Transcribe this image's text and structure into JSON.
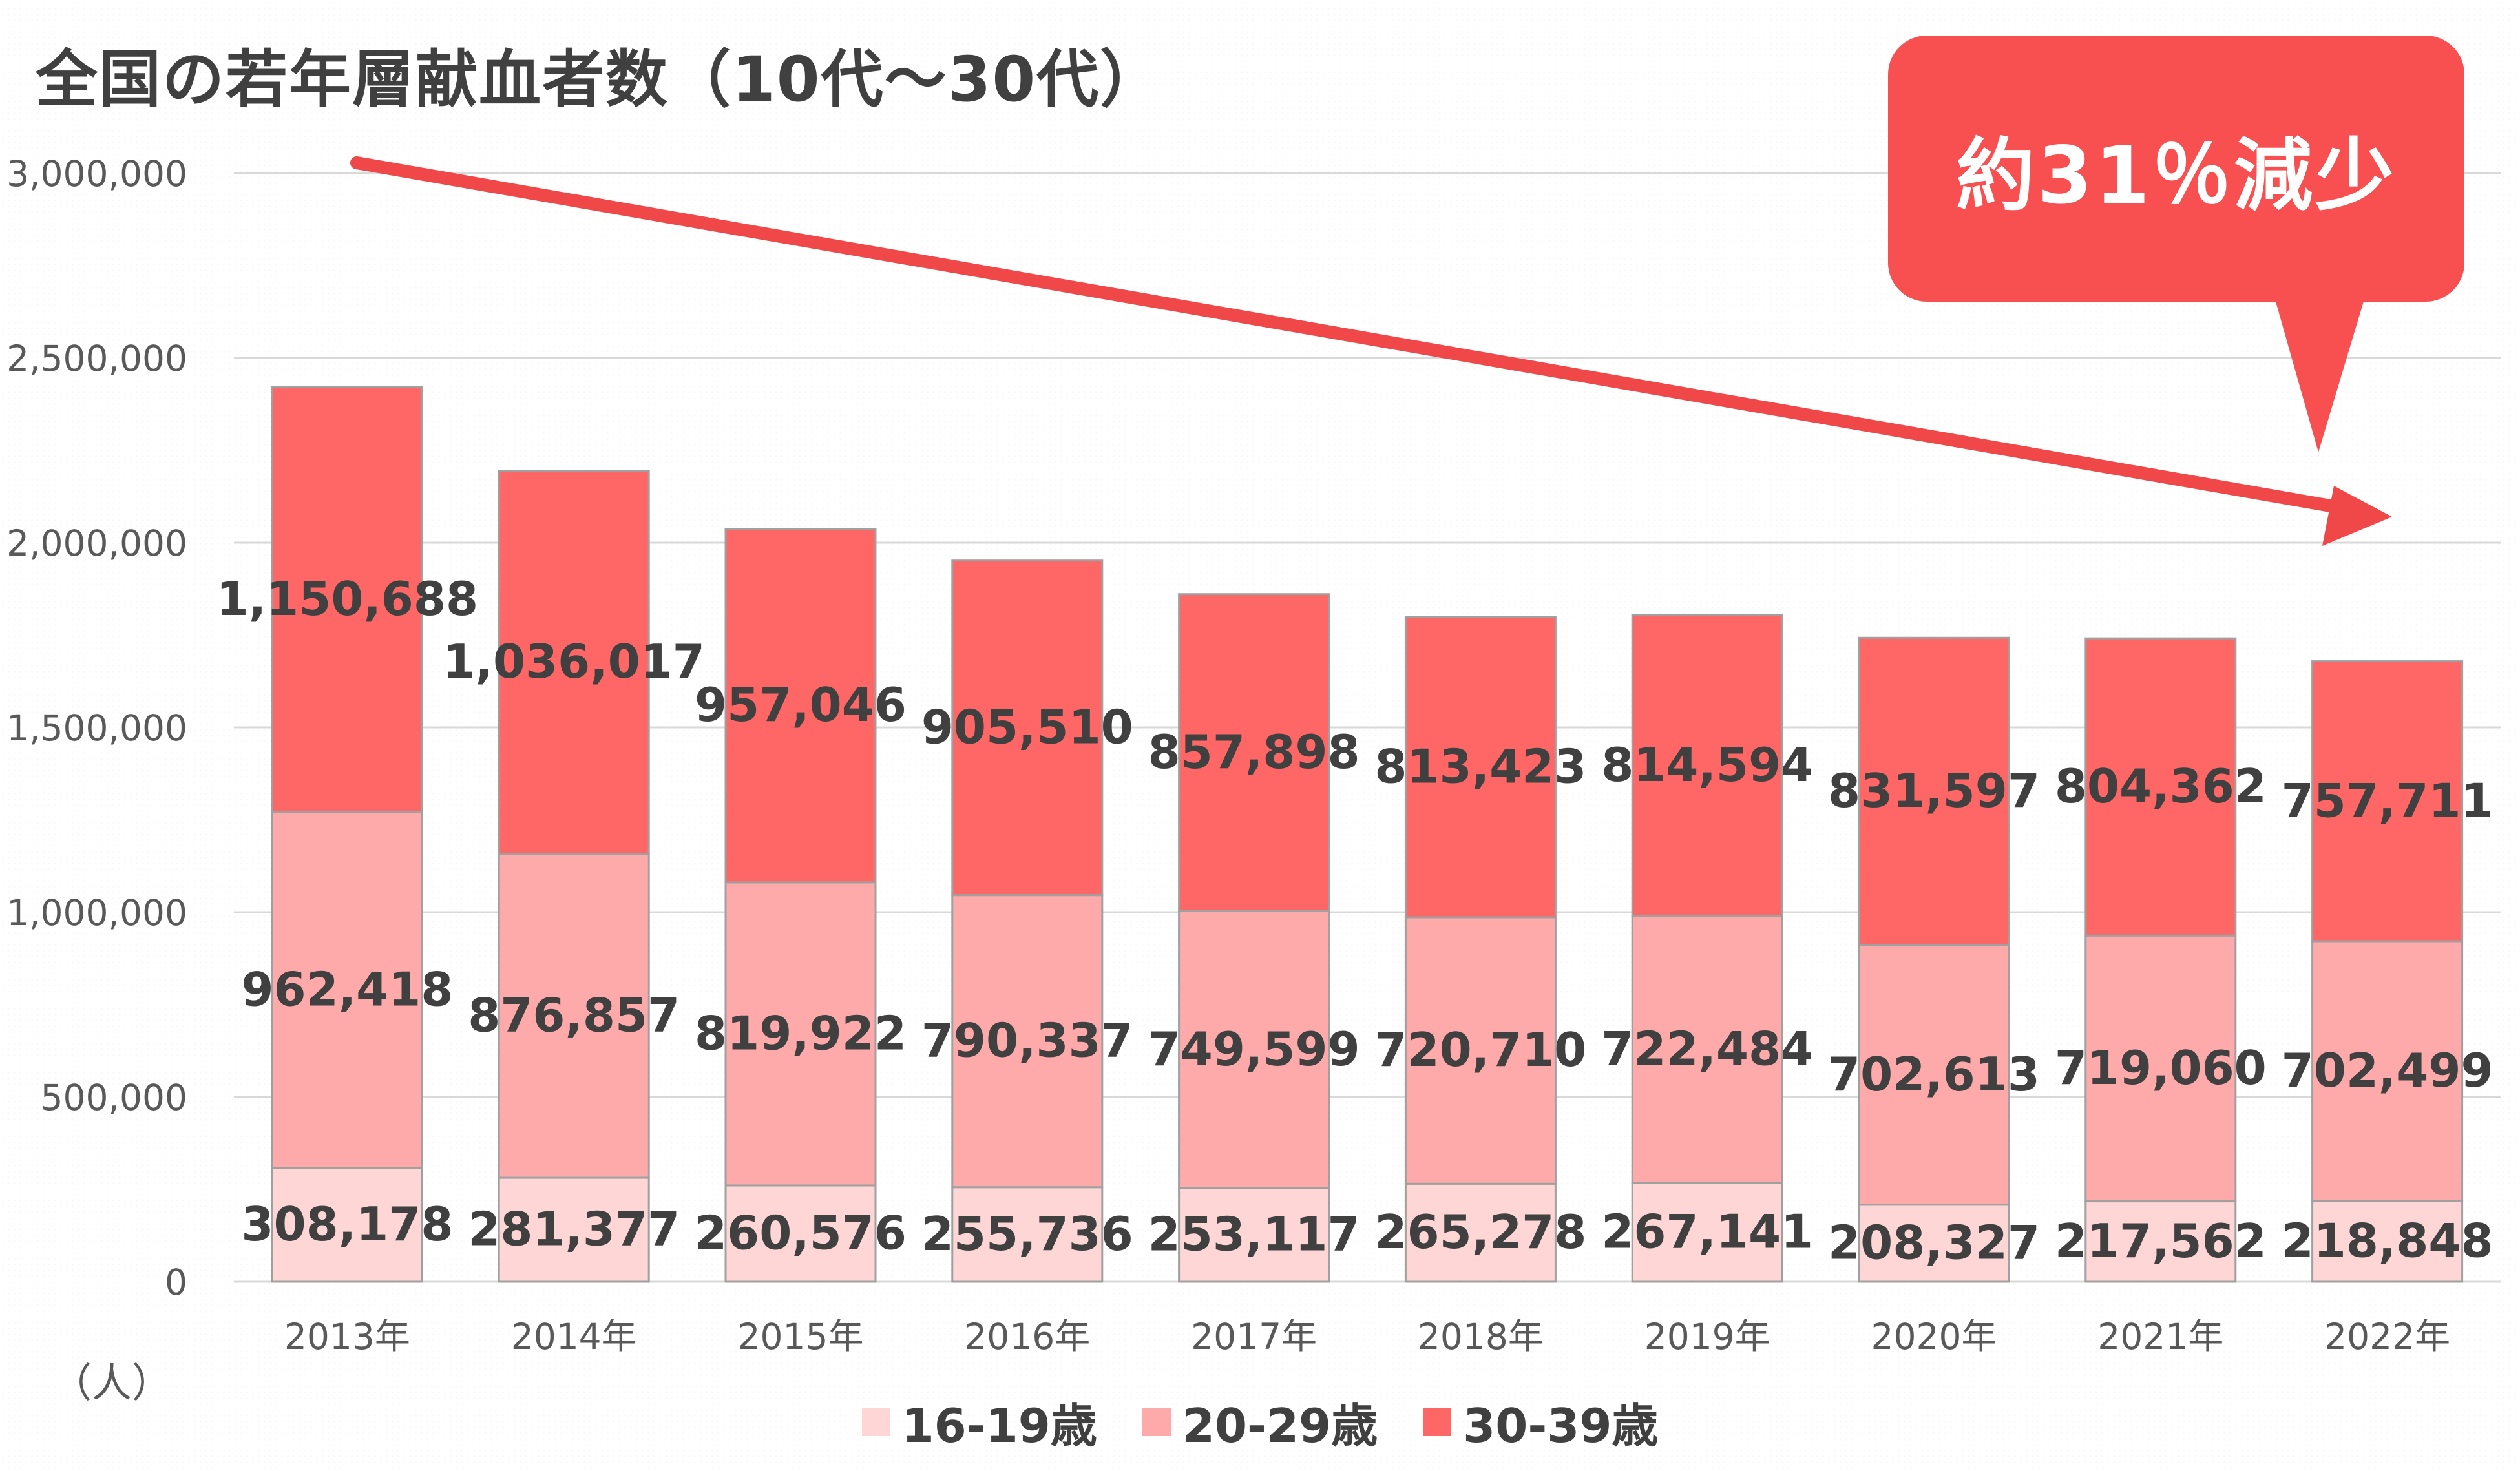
{
  "title": "全国の若年層献血者数（10代～30代）",
  "unit_label": "（人）",
  "callout": {
    "text": "約31％減少",
    "color": "#f85050"
  },
  "colors": {
    "arrow": "#f04848",
    "gridline": "#d9d9d9",
    "axis_text": "#595959",
    "data_label": "#404040"
  },
  "chart_data": {
    "type": "bar",
    "stacked": true,
    "title": "全国の若年層献血者数（10代～30代）",
    "xlabel": "",
    "ylabel": "（人）",
    "categories": [
      "2013年",
      "2014年",
      "2015年",
      "2016年",
      "2017年",
      "2018年",
      "2019年",
      "2020年",
      "2021年",
      "2022年"
    ],
    "ylim": [
      0,
      3000000
    ],
    "yticks": [
      0,
      500000,
      1000000,
      1500000,
      2000000,
      2500000,
      3000000
    ],
    "ytick_labels": [
      "0",
      "500,000",
      "1,000,000",
      "1,500,000",
      "2,000,000",
      "2,500,000",
      "3,000,000"
    ],
    "grid": true,
    "legend_position": "bottom",
    "series": [
      {
        "name": "16-19歳",
        "color": "#ffd6d6",
        "values": [
          308178,
          281377,
          260576,
          255736,
          253117,
          265278,
          267141,
          208327,
          217562,
          218848
        ],
        "labels": [
          "308,178",
          "281,377",
          "260,576",
          "255,736",
          "253,117",
          "265,278",
          "267,141",
          "208,327",
          "217,562",
          "218,848"
        ]
      },
      {
        "name": "20-29歳",
        "color": "#ffaaaa",
        "values": [
          962418,
          876857,
          819922,
          790337,
          749599,
          720710,
          722484,
          702613,
          719060,
          702499
        ],
        "labels": [
          "962,418",
          "876,857",
          "819,922",
          "790,337",
          "749,599",
          "720,710",
          "722,484",
          "702,613",
          "719,060",
          "702,499"
        ]
      },
      {
        "name": "30-39歳",
        "color": "#ff6666",
        "values": [
          1150688,
          1036017,
          957046,
          905510,
          857898,
          813423,
          814594,
          831597,
          804362,
          757711
        ],
        "labels": [
          "1,150,688",
          "1,036,017",
          "957,046",
          "905,510",
          "857,898",
          "813,423",
          "814,594",
          "831,597",
          "804,362",
          "757,711"
        ]
      }
    ]
  }
}
